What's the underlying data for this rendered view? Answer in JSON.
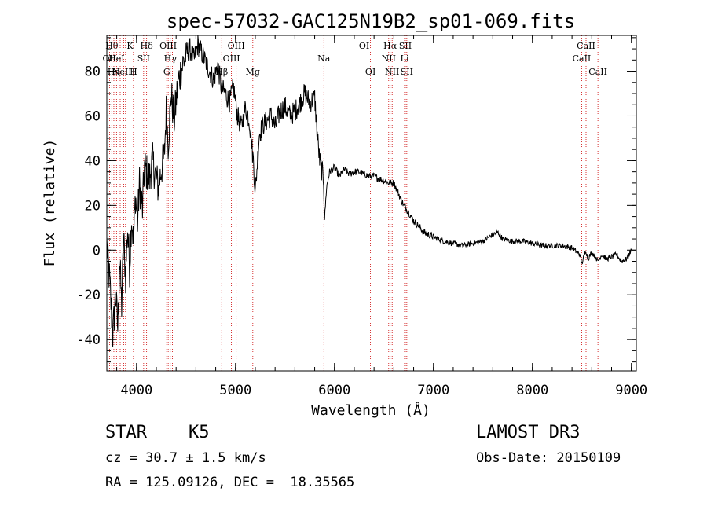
{
  "title": "spec-57032-GAC125N19B2_sp01-069.fits",
  "footer": {
    "class_label": "STAR",
    "subclass": "K5",
    "survey": "LAMOST DR3",
    "cz_text": "cz = 30.7 ± 1.5 km/s",
    "obs_date": "Obs-Date: 20150109",
    "radec": "RA = 125.09126, DEC =  18.35565"
  },
  "chart_data": {
    "type": "line",
    "title": "spec-57032-GAC125N19B2_sp01-069.fits",
    "xlabel": "Wavelength (Å)",
    "ylabel": "Flux (relative)",
    "xlim": [
      3700,
      9050
    ],
    "ylim": [
      -54,
      96
    ],
    "xticks": [
      4000,
      5000,
      6000,
      7000,
      8000,
      9000
    ],
    "yticks": [
      -40,
      -20,
      0,
      20,
      40,
      60,
      80
    ],
    "line_color": "#000000",
    "marker_color": "#cc0000",
    "series": [
      {
        "name": "flux",
        "x": [
          3700,
          3730,
          3760,
          3790,
          3810,
          3830,
          3850,
          3870,
          3890,
          3910,
          3930,
          3950,
          3970,
          3990,
          4010,
          4030,
          4060,
          4080,
          4100,
          4130,
          4160,
          4190,
          4220,
          4250,
          4280,
          4300,
          4320,
          4350,
          4380,
          4420,
          4460,
          4500,
          4540,
          4580,
          4620,
          4660,
          4700,
          4740,
          4780,
          4820,
          4860,
          4900,
          4940,
          4980,
          5020,
          5060,
          5100,
          5140,
          5180,
          5200,
          5240,
          5280,
          5320,
          5360,
          5400,
          5450,
          5500,
          5550,
          5600,
          5650,
          5700,
          5750,
          5800,
          5830,
          5850,
          5870,
          5890,
          5900,
          5920,
          5950,
          6000,
          6050,
          6100,
          6150,
          6200,
          6250,
          6300,
          6350,
          6400,
          6450,
          6500,
          6550,
          6600,
          6650,
          6700,
          6750,
          6800,
          6850,
          6900,
          6950,
          7000,
          7100,
          7200,
          7300,
          7400,
          7500,
          7600,
          7650,
          7700,
          7800,
          7900,
          8000,
          8100,
          8200,
          8300,
          8400,
          8450,
          8480,
          8500,
          8520,
          8540,
          8560,
          8600,
          8640,
          8660,
          8700,
          8750,
          8800,
          8850,
          8900,
          8950,
          9000
        ],
        "y": [
          2,
          -15,
          -38,
          -20,
          -35,
          -5,
          -25,
          5,
          -12,
          10,
          -8,
          15,
          3,
          25,
          12,
          30,
          18,
          38,
          35,
          32,
          40,
          34,
          28,
          36,
          42,
          62,
          48,
          70,
          58,
          75,
          82,
          88,
          90,
          85,
          92,
          88,
          84,
          80,
          76,
          83,
          72,
          70,
          66,
          73,
          60,
          55,
          64,
          58,
          40,
          26,
          52,
          56,
          58,
          60,
          55,
          62,
          64,
          60,
          62,
          66,
          70,
          66,
          68,
          50,
          40,
          36,
          32,
          14,
          28,
          35,
          37,
          33,
          36,
          34,
          35,
          35,
          34,
          33,
          33,
          32,
          31,
          30,
          30,
          25,
          20,
          17,
          13,
          11,
          8,
          7,
          6,
          4,
          3,
          2,
          3,
          4,
          7,
          8,
          5,
          4,
          4,
          3,
          2,
          2,
          2,
          1,
          -1,
          -2,
          -6,
          -3,
          0,
          -4,
          -1,
          -3,
          -5,
          -2,
          -4,
          -3,
          -2,
          -5,
          -4,
          0
        ]
      }
    ],
    "lines": [
      {
        "wl": 3727,
        "label": "OII",
        "row": 2
      },
      {
        "wl": 3750,
        "label": "Hθ",
        "row": 1
      },
      {
        "wl": 3771,
        "label": "Hη",
        "row": 3
      },
      {
        "wl": 3798,
        "label": "HeI",
        "row": 2
      },
      {
        "wl": 3835,
        "label": "",
        "row": 0
      },
      {
        "wl": 3870,
        "label": "NeIII",
        "row": 3
      },
      {
        "wl": 3889,
        "label": "",
        "row": 0
      },
      {
        "wl": 3934,
        "label": "K",
        "row": 1
      },
      {
        "wl": 3969,
        "label": "H",
        "row": 3
      },
      {
        "wl": 4072,
        "label": "SII",
        "row": 2
      },
      {
        "wl": 4102,
        "label": "Hδ",
        "row": 1
      },
      {
        "wl": 4305,
        "label": "G",
        "row": 3
      },
      {
        "wl": 4320,
        "label": "OIII",
        "row": 1
      },
      {
        "wl": 4341,
        "label": "Hγ",
        "row": 2
      },
      {
        "wl": 4363,
        "label": "",
        "row": 0
      },
      {
        "wl": 4861,
        "label": "Hβ",
        "row": 3
      },
      {
        "wl": 4959,
        "label": "OIII",
        "row": 2
      },
      {
        "wl": 5007,
        "label": "OIII",
        "row": 1
      },
      {
        "wl": 5175,
        "label": "Mg",
        "row": 3
      },
      {
        "wl": 5893,
        "label": "Na",
        "row": 2
      },
      {
        "wl": 6300,
        "label": "OI",
        "row": 1
      },
      {
        "wl": 6364,
        "label": "OI",
        "row": 3
      },
      {
        "wl": 6548,
        "label": "NII",
        "row": 2
      },
      {
        "wl": 6563,
        "label": "Hα",
        "row": 1
      },
      {
        "wl": 6583,
        "label": "NII",
        "row": 3
      },
      {
        "wl": 6708,
        "label": "Li",
        "row": 2
      },
      {
        "wl": 6716,
        "label": "SII",
        "row": 1
      },
      {
        "wl": 6731,
        "label": "SII",
        "row": 3
      },
      {
        "wl": 8498,
        "label": "CaII",
        "row": 2
      },
      {
        "wl": 8542,
        "label": "CaII",
        "row": 1
      },
      {
        "wl": 8662,
        "label": "CaII",
        "row": 3
      }
    ]
  }
}
